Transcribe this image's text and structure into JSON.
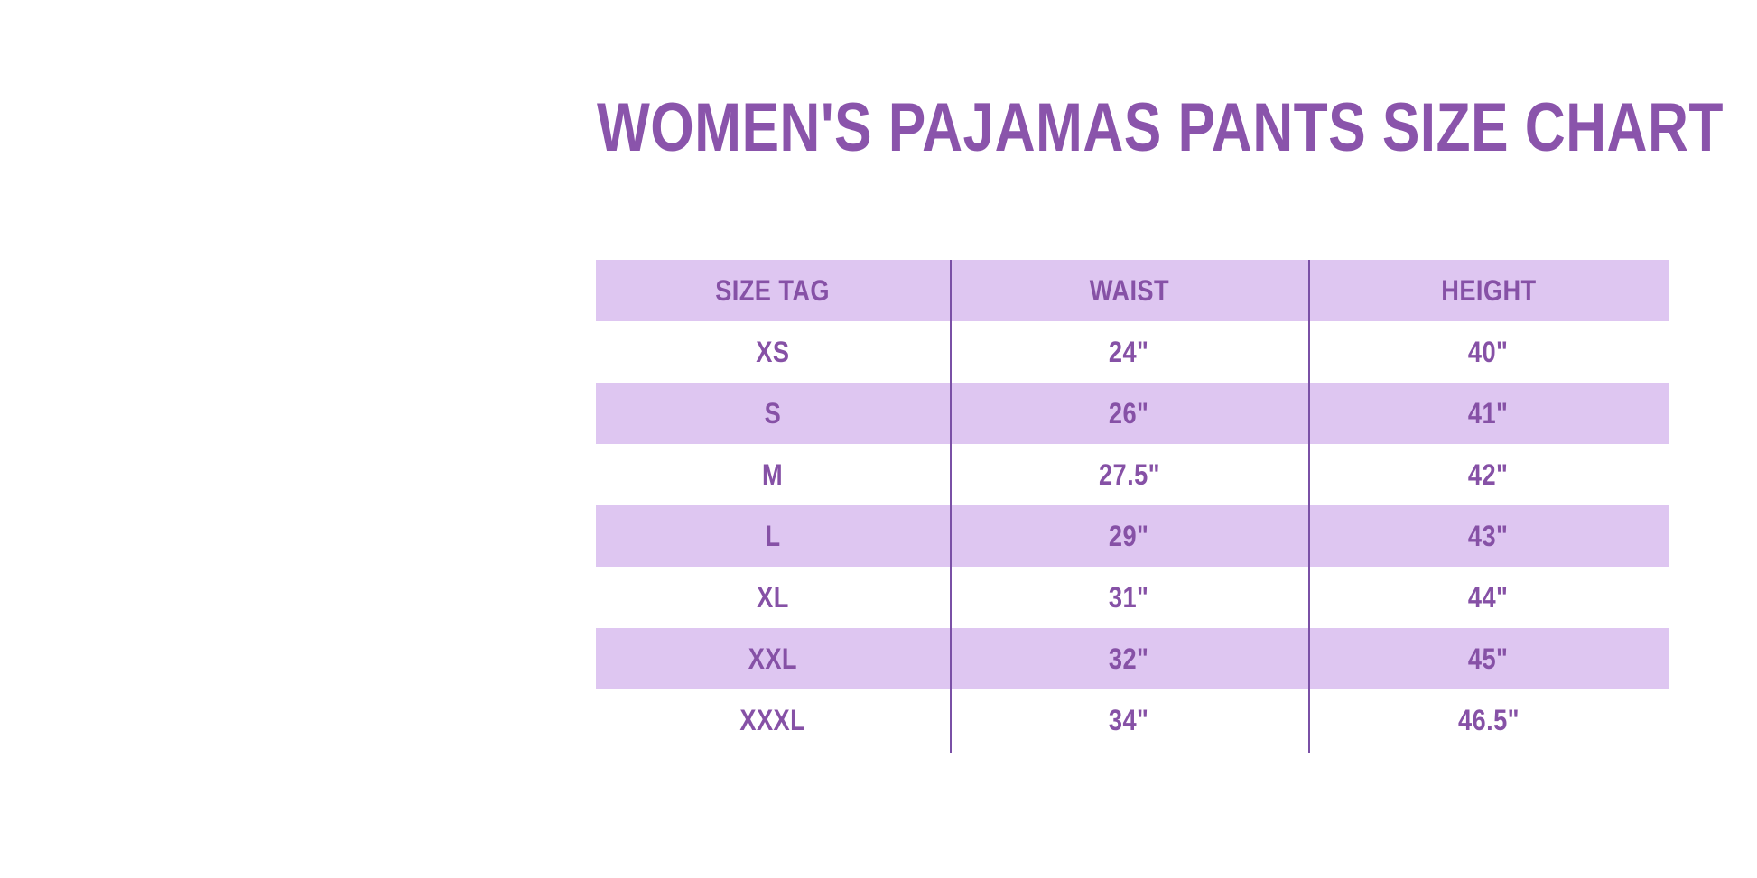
{
  "colors": {
    "page_bg": "#ffffff",
    "title_text": "#8a54ab",
    "cell_text": "#8651a6",
    "row_band": "#dec6f1",
    "divider": "#7a50a6"
  },
  "chart_data": {
    "type": "table",
    "title": "WOMEN'S PAJAMAS PANTS SIZE CHART",
    "columns": [
      "SIZE TAG",
      "WAIST",
      "HEIGHT"
    ],
    "rows": [
      [
        "XS",
        "24\"",
        "40\""
      ],
      [
        "S",
        "26\"",
        "41\""
      ],
      [
        "M",
        "27.5\"",
        "42\""
      ],
      [
        "L",
        "29\"",
        "43\""
      ],
      [
        "XL",
        "31\"",
        "44\""
      ],
      [
        "XXL",
        "32\"",
        "45\""
      ],
      [
        "XXXL",
        "34\"",
        "46.5\""
      ]
    ],
    "layout": {
      "banded_rows": "header and alternating data rows S, L, XXL",
      "grid": "two vertical column dividers only, no horizontal borders"
    }
  }
}
